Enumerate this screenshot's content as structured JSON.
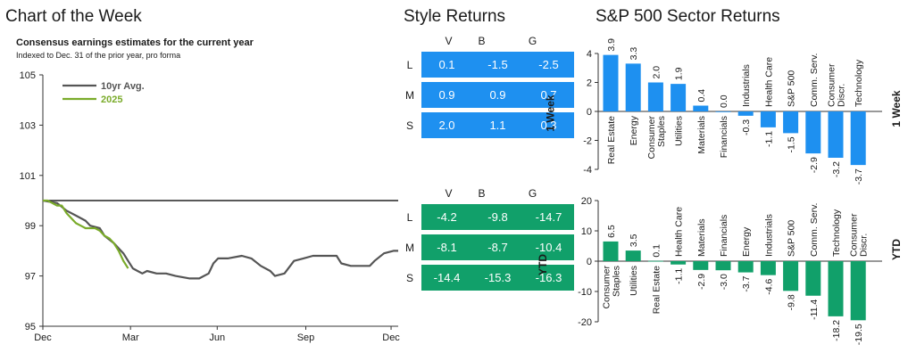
{
  "left_panel": {
    "heading": "Chart of the Week",
    "subtitle": "Consensus earnings estimates for the current year",
    "note": "Indexed to Dec. 31 of the prior year, pro forma"
  },
  "style_panel": {
    "heading": "Style Returns",
    "columns": [
      "V",
      "B",
      "G"
    ],
    "rows": [
      "L",
      "M",
      "S"
    ],
    "week_label": "1 Week",
    "ytd_label": "YTD",
    "week_values": [
      [
        "0.1",
        "-1.5",
        "-2.5"
      ],
      [
        "0.9",
        "0.9",
        "0.7"
      ],
      [
        "2.0",
        "1.1",
        "0.3"
      ]
    ],
    "ytd_values": [
      [
        "-4.2",
        "-9.8",
        "-14.7"
      ],
      [
        "-8.1",
        "-8.7",
        "-10.4"
      ],
      [
        "-14.4",
        "-15.3",
        "-16.3"
      ]
    ]
  },
  "sector_panel": {
    "heading": "S&P 500 Sector Returns",
    "week_label": "1 Week",
    "ytd_label": "YTD"
  },
  "colors": {
    "blue": "#1e90f0",
    "green": "#11a06a",
    "line_gray": "#555555",
    "line_green": "#7aab2a"
  },
  "chart_data": [
    {
      "type": "line",
      "x_ticks": [
        "Dec",
        "Mar",
        "Jun",
        "Sep",
        "Dec"
      ],
      "y_ticks": [
        95,
        97,
        99,
        101,
        103,
        105
      ],
      "ylim": [
        95,
        105
      ],
      "series": [
        {
          "name": "10yr Avg.",
          "color": "#555555",
          "points": [
            [
              0,
              100
            ],
            [
              3,
              99.9
            ],
            [
              5,
              99.6
            ],
            [
              7,
              99.4
            ],
            [
              9,
              99.2
            ],
            [
              10,
              99.0
            ],
            [
              12,
              98.9
            ],
            [
              13,
              98.6
            ],
            [
              15,
              98.3
            ],
            [
              17,
              97.9
            ],
            [
              18,
              97.6
            ],
            [
              19,
              97.3
            ],
            [
              20,
              97.2
            ],
            [
              21,
              97.1
            ],
            [
              22,
              97.2
            ],
            [
              24,
              97.1
            ],
            [
              26,
              97.1
            ],
            [
              28,
              97.0
            ],
            [
              31,
              96.9
            ],
            [
              32,
              96.9
            ],
            [
              33,
              96.9
            ],
            [
              35,
              97.1
            ],
            [
              36,
              97.5
            ],
            [
              37,
              97.7
            ],
            [
              39,
              97.7
            ],
            [
              42,
              97.8
            ],
            [
              44,
              97.7
            ],
            [
              46,
              97.4
            ],
            [
              48,
              97.2
            ],
            [
              49,
              97.0
            ],
            [
              51,
              97.1
            ],
            [
              53,
              97.6
            ],
            [
              55,
              97.7
            ],
            [
              57,
              97.8
            ],
            [
              60,
              97.8
            ],
            [
              62,
              97.8
            ],
            [
              63,
              97.5
            ],
            [
              65,
              97.4
            ],
            [
              67,
              97.4
            ],
            [
              69,
              97.4
            ],
            [
              70,
              97.6
            ],
            [
              72,
              97.9
            ],
            [
              74,
              98.0
            ],
            [
              75,
              98.0
            ]
          ]
        },
        {
          "name": "2025",
          "color": "#7aab2a",
          "points": [
            [
              0,
              100
            ],
            [
              1,
              100
            ],
            [
              2,
              99.9
            ],
            [
              3,
              99.8
            ],
            [
              4,
              99.8
            ],
            [
              5,
              99.5
            ],
            [
              6,
              99.3
            ],
            [
              7,
              99.1
            ],
            [
              8,
              99.0
            ],
            [
              9,
              98.9
            ],
            [
              10,
              98.9
            ],
            [
              11,
              98.9
            ],
            [
              12,
              98.8
            ],
            [
              13,
              98.6
            ],
            [
              14,
              98.5
            ],
            [
              15,
              98.3
            ],
            [
              16,
              98.0
            ],
            [
              17,
              97.6
            ],
            [
              18,
              97.3
            ]
          ]
        }
      ]
    },
    {
      "type": "bar",
      "period": "1 Week",
      "categories": [
        "Real Estate",
        "Energy",
        "Consumer Staples",
        "Utilities",
        "Materials",
        "Financials",
        "Industrials",
        "Health Care",
        "S&P 500",
        "Comm. Serv.",
        "Consumer Discr.",
        "Technology"
      ],
      "values": [
        3.9,
        3.3,
        2.0,
        1.9,
        0.4,
        0.0,
        -0.3,
        -1.1,
        -1.5,
        -2.9,
        -3.2,
        -3.7
      ],
      "value_labels": [
        "3.9",
        "3.3",
        "2.0",
        "1.9",
        "0.4",
        "0.0",
        "-0.3",
        "-1.1",
        "-1.5",
        "-2.9",
        "-3.2",
        "-3.7"
      ],
      "y_ticks": [
        4,
        2,
        0,
        -2,
        -4
      ],
      "ylim": [
        -4,
        4
      ],
      "color": "#1e90f0"
    },
    {
      "type": "bar",
      "period": "YTD",
      "categories": [
        "Consumer Staples",
        "Utilities",
        "Real Estate",
        "Health Care",
        "Materials",
        "Financials",
        "Energy",
        "Industrials",
        "S&P 500",
        "Comm. Serv.",
        "Technology",
        "Consumer Discr."
      ],
      "values": [
        6.5,
        3.5,
        0.1,
        -1.1,
        -2.9,
        -3.0,
        -3.7,
        -4.6,
        -9.8,
        -11.4,
        -18.2,
        -19.5
      ],
      "value_labels": [
        "6.5",
        "3.5",
        "0.1",
        "-1.1",
        "-2.9",
        "-3.0",
        "-3.7",
        "-4.6",
        "-9.8",
        "-11.4",
        "-18.2",
        "-19.5"
      ],
      "y_ticks": [
        20,
        10,
        0,
        -10,
        -20
      ],
      "ylim": [
        -20,
        20
      ],
      "color": "#11a06a"
    }
  ]
}
